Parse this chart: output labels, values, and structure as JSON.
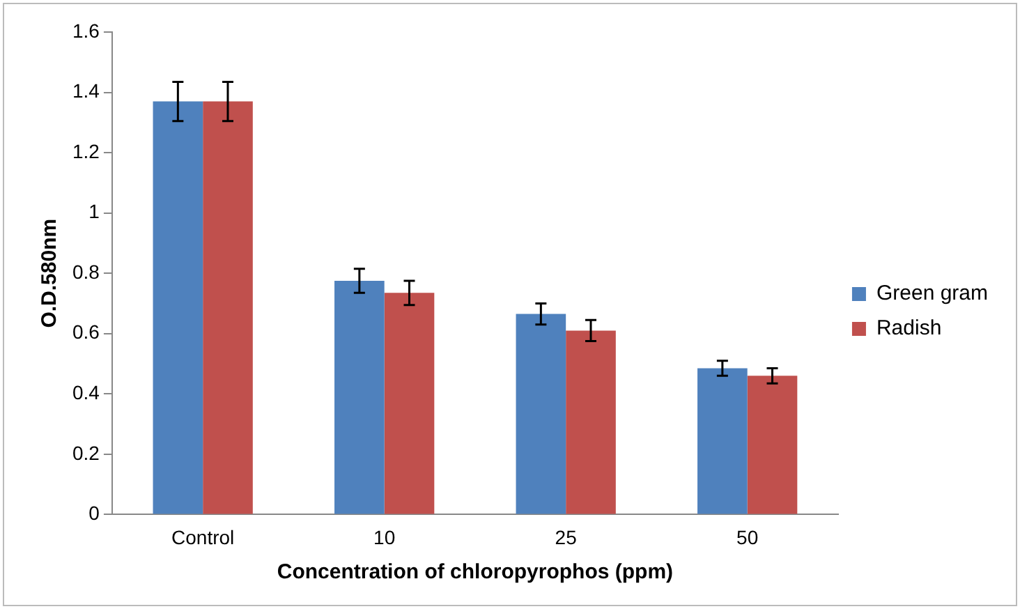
{
  "chart_data": {
    "type": "bar",
    "xlabel": "Concentration of chloropyrophos (ppm)",
    "ylabel": "O.D.580nm",
    "categories": [
      "Control",
      "10",
      "25",
      "50"
    ],
    "series": [
      {
        "name": "Green gram",
        "color": "#4f81bd",
        "values": [
          1.37,
          0.775,
          0.665,
          0.485
        ],
        "errors": [
          0.065,
          0.04,
          0.035,
          0.025
        ]
      },
      {
        "name": "Radish",
        "color": "#c0504d",
        "values": [
          1.37,
          0.735,
          0.61,
          0.46
        ],
        "errors": [
          0.065,
          0.04,
          0.035,
          0.025
        ]
      }
    ],
    "ylim": [
      0,
      1.6
    ],
    "yticks": [
      0,
      0.2,
      0.4,
      0.6,
      0.8,
      1,
      1.2,
      1.4,
      1.6
    ],
    "grid": false,
    "legend": "right"
  }
}
